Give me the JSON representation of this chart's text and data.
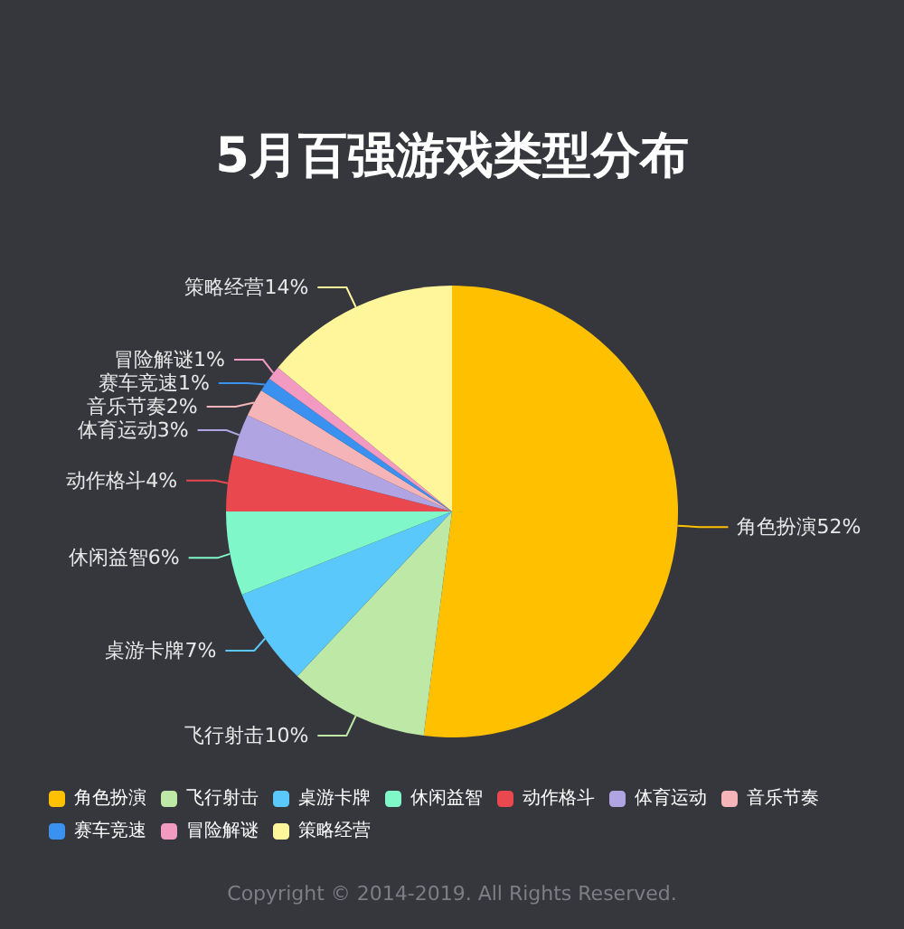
{
  "chart_data": {
    "type": "pie",
    "title": "5月百强游戏类型分布",
    "categories": [
      "角色扮演",
      "飞行射击",
      "桌游卡牌",
      "休闲益智",
      "动作格斗",
      "体育运动",
      "音乐节奏",
      "赛车竞速",
      "冒险解谜",
      "策略经营"
    ],
    "values": [
      52,
      10,
      7,
      6,
      4,
      3,
      2,
      1,
      1,
      14
    ],
    "value_labels": [
      "52%",
      "10%",
      "7%",
      "6%",
      "4%",
      "3%",
      "2%",
      "1%",
      "1%",
      "14%"
    ],
    "colors": [
      "#ffc000",
      "#bde8a6",
      "#5ac8fa",
      "#7ff7c9",
      "#e8484e",
      "#b0a4e3",
      "#f5b5b8",
      "#3b91f0",
      "#f29ac1",
      "#fff59b"
    ],
    "legend": "bottom",
    "annotations": [
      "Copyright © 2014-2019. All Rights Reserved."
    ]
  }
}
